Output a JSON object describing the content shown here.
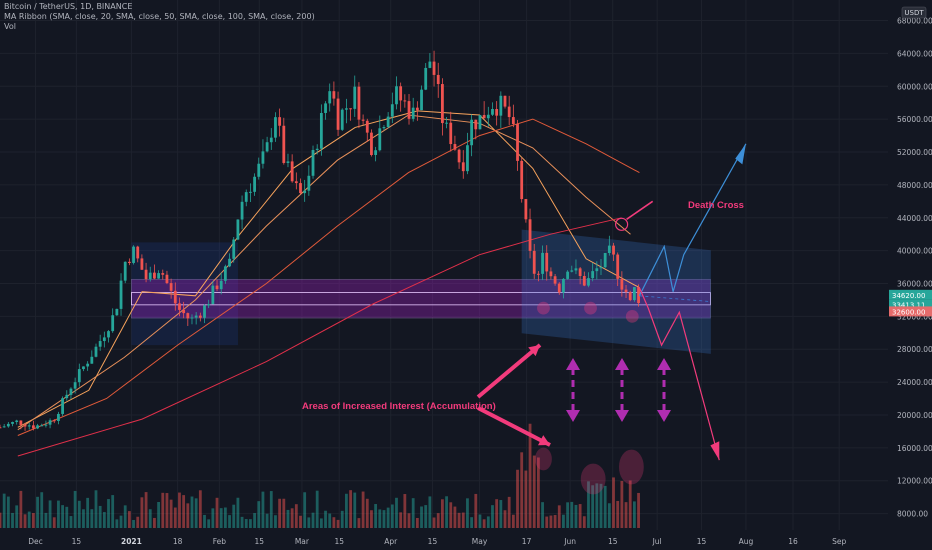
{
  "legend": {
    "symbol": "Bitcoin / TetherUS, 1D, BINANCE",
    "ma_ribbon": "MA Ribbon (SMA, close, 20, SMA, close, 50, SMA, close, 100, SMA, close, 200)",
    "vol": "Vol"
  },
  "currency_badge": "USDT",
  "price_labels": [
    {
      "text": "34620.00",
      "price": 34620,
      "color": "#26a69a"
    },
    {
      "text": "33413.11",
      "price": 33413,
      "color": "#26a69a"
    },
    {
      "text": "32600.00",
      "price": 32600,
      "color": "#e56b6b"
    }
  ],
  "colors": {
    "background": "#131722",
    "up": "#26a69a",
    "down": "#ef5350",
    "zone_fill": "#a020c0",
    "channel": "#3a7bd5",
    "annotation": "#f23b7c",
    "arrows": "#b02db0",
    "ma20": "#f7a35c",
    "ma50": "#e8905a",
    "ma100": "#e05a3a",
    "ma200": "#e0304a"
  },
  "annotations": {
    "death_cross": "Death Cross",
    "accumulation": "Areas of Increased Interest (Accumulation)"
  },
  "chart_data": {
    "type": "candlestick",
    "y_axis": {
      "range": [
        6000,
        70500
      ],
      "ticks": [
        8000,
        12000,
        16000,
        20000,
        24000,
        28000,
        32000,
        36000,
        40000,
        44000,
        48000,
        52000,
        56000,
        60000,
        64000,
        68000
      ]
    },
    "x_axis": {
      "labels": [
        {
          "text": "Dec",
          "x": 0.04,
          "bold": false
        },
        {
          "text": "15",
          "x": 0.086,
          "bold": false
        },
        {
          "text": "2021",
          "x": 0.148,
          "bold": true
        },
        {
          "text": "18",
          "x": 0.2,
          "bold": false
        },
        {
          "text": "Feb",
          "x": 0.247,
          "bold": false
        },
        {
          "text": "15",
          "x": 0.292,
          "bold": false
        },
        {
          "text": "Mar",
          "x": 0.34,
          "bold": false
        },
        {
          "text": "15",
          "x": 0.382,
          "bold": false
        },
        {
          "text": "Apr",
          "x": 0.44,
          "bold": false
        },
        {
          "text": "15",
          "x": 0.487,
          "bold": false
        },
        {
          "text": "May",
          "x": 0.54,
          "bold": false
        },
        {
          "text": "17",
          "x": 0.593,
          "bold": false
        },
        {
          "text": "Jun",
          "x": 0.642,
          "bold": false
        },
        {
          "text": "15",
          "x": 0.69,
          "bold": false
        },
        {
          "text": "Jul",
          "x": 0.74,
          "bold": false
        },
        {
          "text": "15",
          "x": 0.79,
          "bold": false
        },
        {
          "text": "Aug",
          "x": 0.84,
          "bold": false
        },
        {
          "text": "16",
          "x": 0.893,
          "bold": false
        },
        {
          "text": "Sep",
          "x": 0.945,
          "bold": false
        }
      ]
    },
    "price_path": [
      [
        0.0,
        18500
      ],
      [
        0.02,
        19200
      ],
      [
        0.04,
        18600
      ],
      [
        0.06,
        19400
      ],
      [
        0.08,
        23500
      ],
      [
        0.095,
        26000
      ],
      [
        0.11,
        28500
      ],
      [
        0.13,
        32500
      ],
      [
        0.14,
        38500
      ],
      [
        0.15,
        40000
      ],
      [
        0.165,
        36500
      ],
      [
        0.18,
        38000
      ],
      [
        0.2,
        33000
      ],
      [
        0.215,
        31500
      ],
      [
        0.23,
        33000
      ],
      [
        0.245,
        36000
      ],
      [
        0.26,
        38500
      ],
      [
        0.265,
        43000
      ],
      [
        0.275,
        47000
      ],
      [
        0.285,
        48500
      ],
      [
        0.3,
        52000
      ],
      [
        0.31,
        57000
      ],
      [
        0.32,
        51000
      ],
      [
        0.33,
        48000
      ],
      [
        0.34,
        46500
      ],
      [
        0.35,
        50000
      ],
      [
        0.36,
        55000
      ],
      [
        0.372,
        60500
      ],
      [
        0.38,
        56000
      ],
      [
        0.39,
        57500
      ],
      [
        0.4,
        59000
      ],
      [
        0.41,
        55000
      ],
      [
        0.42,
        52500
      ],
      [
        0.435,
        57000
      ],
      [
        0.445,
        59000
      ],
      [
        0.455,
        58000
      ],
      [
        0.465,
        56500
      ],
      [
        0.475,
        60000
      ],
      [
        0.485,
        63500
      ],
      [
        0.49,
        61000
      ],
      [
        0.5,
        55000
      ],
      [
        0.51,
        53500
      ],
      [
        0.52,
        50000
      ],
      [
        0.53,
        55500
      ],
      [
        0.54,
        56000
      ],
      [
        0.555,
        58000
      ],
      [
        0.565,
        57500
      ],
      [
        0.575,
        56000
      ],
      [
        0.58,
        53000
      ],
      [
        0.585,
        48500
      ],
      [
        0.592,
        43000
      ],
      [
        0.598,
        38500
      ],
      [
        0.605,
        36500
      ],
      [
        0.612,
        39500
      ],
      [
        0.62,
        37000
      ],
      [
        0.63,
        35500
      ],
      [
        0.64,
        38500
      ],
      [
        0.65,
        37000
      ],
      [
        0.66,
        36000
      ],
      [
        0.67,
        37500
      ],
      [
        0.68,
        38500
      ],
      [
        0.688,
        40000
      ],
      [
        0.695,
        37500
      ],
      [
        0.7,
        36000
      ],
      [
        0.705,
        35000
      ],
      [
        0.71,
        33500
      ],
      [
        0.715,
        35500
      ],
      [
        0.72,
        34000
      ]
    ],
    "volume_profile_note": "",
    "moving_averages": {
      "ma20": [
        [
          0.02,
          18500
        ],
        [
          0.1,
          23000
        ],
        [
          0.16,
          35000
        ],
        [
          0.22,
          34500
        ],
        [
          0.27,
          42000
        ],
        [
          0.33,
          50000
        ],
        [
          0.4,
          55000
        ],
        [
          0.47,
          57000
        ],
        [
          0.54,
          56500
        ],
        [
          0.6,
          50000
        ],
        [
          0.66,
          39000
        ],
        [
          0.72,
          35500
        ]
      ],
      "ma50": [
        [
          0.02,
          18200
        ],
        [
          0.14,
          27000
        ],
        [
          0.22,
          34000
        ],
        [
          0.3,
          43000
        ],
        [
          0.38,
          51000
        ],
        [
          0.46,
          56500
        ],
        [
          0.54,
          55500
        ],
        [
          0.6,
          52500
        ],
        [
          0.66,
          46500
        ],
        [
          0.71,
          42000
        ]
      ],
      "ma100": [
        [
          0.02,
          17500
        ],
        [
          0.12,
          22000
        ],
        [
          0.2,
          28500
        ],
        [
          0.3,
          36000
        ],
        [
          0.38,
          43000
        ],
        [
          0.46,
          49500
        ],
        [
          0.54,
          54000
        ],
        [
          0.6,
          56000
        ],
        [
          0.66,
          53000
        ],
        [
          0.72,
          49500
        ]
      ],
      "ma200": [
        [
          0.02,
          15000
        ],
        [
          0.16,
          19500
        ],
        [
          0.3,
          26500
        ],
        [
          0.42,
          33500
        ],
        [
          0.54,
          39500
        ],
        [
          0.62,
          42000
        ],
        [
          0.7,
          44000
        ]
      ]
    }
  }
}
